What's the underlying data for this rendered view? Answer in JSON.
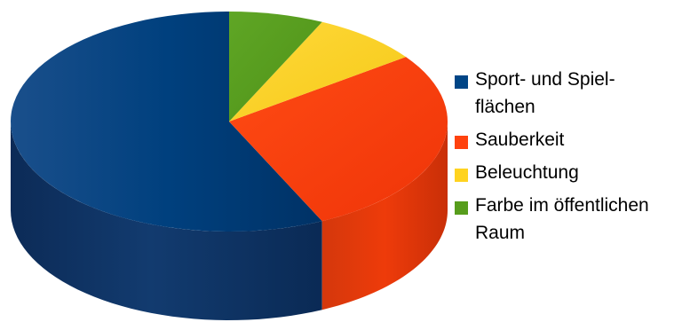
{
  "chart_data": {
    "type": "pie",
    "title": "",
    "labels": [
      "Sport- und Spielflächen",
      "Sauberkeit",
      "Beleuchtung",
      "Farbe im öffentlichen Raum"
    ],
    "values": [
      57,
      28,
      8,
      7
    ],
    "colors": [
      "#004586",
      "#ff420e",
      "#ffd320",
      "#579d1c"
    ],
    "legend_position": "right",
    "three_d": true
  },
  "legend": {
    "items": [
      {
        "label": "Sport- und Spiel-flächen",
        "line1": "Sport- und Spiel-",
        "line2": "flächen",
        "color": "#004586"
      },
      {
        "label": "Sauberkeit",
        "line1": "Sauberkeit",
        "line2": "",
        "color": "#ff420e"
      },
      {
        "label": "Beleuchtung",
        "line1": "Beleuchtung",
        "line2": "",
        "color": "#ffd320"
      },
      {
        "label": "Farbe im öffentlichen Raum",
        "line1": "Farbe im öffentlichen",
        "line2": "Raum",
        "color": "#579d1c"
      }
    ]
  }
}
